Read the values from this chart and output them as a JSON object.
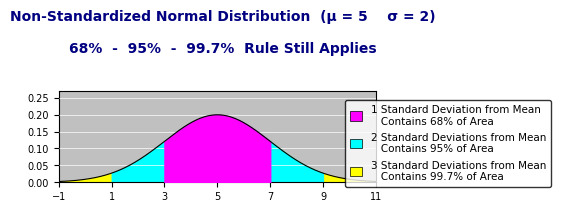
{
  "title_line1": "Non-Standardized Normal Distribution  (μ = 5    σ = 2)",
  "title_line2": "68%  -  95%  -  99.7%  Rule Still Applies",
  "mu": 5,
  "sigma": 2,
  "xlim": [
    -1,
    11
  ],
  "ylim": [
    0,
    0.27
  ],
  "xticks": [
    -1,
    1,
    3,
    5,
    7,
    9,
    11
  ],
  "yticks": [
    0,
    0.05,
    0.1,
    0.15,
    0.2,
    0.25
  ],
  "color_3sigma": "#FFFF00",
  "color_2sigma": "#00FFFF",
  "color_1sigma": "#FF00FF",
  "bg_color": "#C0C0C0",
  "legend_1sigma": "1 Standard Deviation from Mean\n   Contains 68% of Area",
  "legend_2sigma": "2 Standard Deviations from Mean\n   Contains 95% of Area",
  "legend_3sigma": "3 Standard Deviations from Mean\n   Contains 99.7% of Area",
  "title_fontsize": 10,
  "subtitle_fontsize": 10,
  "legend_fontsize": 7.5
}
